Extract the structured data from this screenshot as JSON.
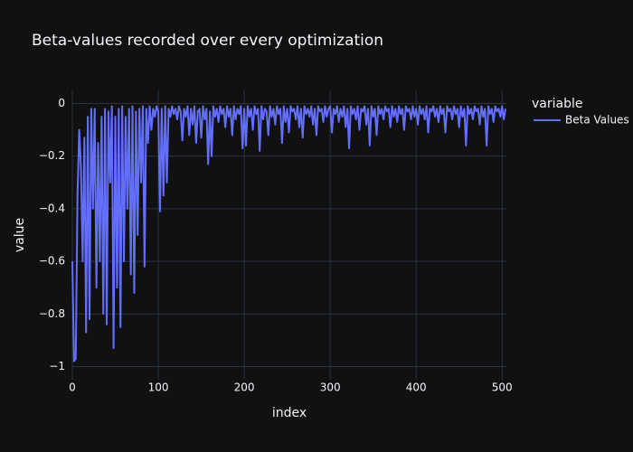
{
  "chart_data": {
    "type": "line",
    "title": "Beta-values recorded over every optimization",
    "x_label": "index",
    "y_label": "value",
    "legend_title": "variable",
    "xlim": [
      0,
      505
    ],
    "ylim": [
      -1.05,
      0.05
    ],
    "xticks": [
      0,
      100,
      200,
      300,
      400,
      500
    ],
    "yticks": [
      {
        "value": -1,
        "label": "−1"
      },
      {
        "value": -0.8,
        "label": "−0.8"
      },
      {
        "value": -0.6,
        "label": "−0.6"
      },
      {
        "value": -0.4,
        "label": "−0.4"
      },
      {
        "value": -0.2,
        "label": "−0.2"
      },
      0
    ],
    "grid": true,
    "x": [
      0,
      2,
      4,
      6,
      8,
      10,
      12,
      14,
      16,
      18,
      20,
      22,
      24,
      26,
      28,
      30,
      32,
      34,
      36,
      38,
      40,
      42,
      44,
      46,
      48,
      50,
      52,
      54,
      56,
      58,
      60,
      62,
      64,
      66,
      68,
      70,
      72,
      74,
      76,
      78,
      80,
      82,
      84,
      86,
      88,
      90,
      92,
      94,
      96,
      98,
      100,
      102,
      104,
      106,
      108,
      110,
      112,
      114,
      116,
      118,
      120,
      122,
      124,
      126,
      128,
      130,
      132,
      134,
      136,
      138,
      140,
      142,
      144,
      146,
      148,
      150,
      152,
      154,
      156,
      158,
      160,
      162,
      164,
      166,
      168,
      170,
      172,
      174,
      176,
      178,
      180,
      182,
      184,
      186,
      188,
      190,
      192,
      194,
      196,
      198,
      200,
      202,
      204,
      206,
      208,
      210,
      212,
      214,
      216,
      218,
      220,
      222,
      224,
      226,
      228,
      230,
      232,
      234,
      236,
      238,
      240,
      242,
      244,
      246,
      248,
      250,
      252,
      254,
      256,
      258,
      260,
      262,
      264,
      266,
      268,
      270,
      272,
      274,
      276,
      278,
      280,
      282,
      284,
      286,
      288,
      290,
      292,
      294,
      296,
      298,
      300,
      302,
      304,
      306,
      308,
      310,
      312,
      314,
      316,
      318,
      320,
      322,
      324,
      326,
      328,
      330,
      332,
      334,
      336,
      338,
      340,
      342,
      344,
      346,
      348,
      350,
      352,
      354,
      356,
      358,
      360,
      362,
      364,
      366,
      368,
      370,
      372,
      374,
      376,
      378,
      380,
      382,
      384,
      386,
      388,
      390,
      392,
      394,
      396,
      398,
      400,
      402,
      404,
      406,
      408,
      410,
      412,
      414,
      416,
      418,
      420,
      422,
      424,
      426,
      428,
      430,
      432,
      434,
      436,
      438,
      440,
      442,
      444,
      446,
      448,
      450,
      452,
      454,
      456,
      458,
      460,
      462,
      464,
      466,
      468,
      470,
      472,
      474,
      476,
      478,
      480,
      482,
      484,
      486,
      488,
      490,
      492,
      494,
      496,
      498,
      500,
      502,
      504
    ],
    "series": [
      {
        "name": "Beta Values",
        "color": "#636efa",
        "values": [
          -0.6,
          -0.98,
          -0.97,
          -0.35,
          -0.1,
          -0.24,
          -0.6,
          -0.13,
          -0.87,
          -0.05,
          -0.82,
          -0.02,
          -0.4,
          -0.02,
          -0.7,
          -0.15,
          -0.6,
          -0.05,
          -0.8,
          -0.02,
          -0.84,
          -0.03,
          -0.3,
          -0.01,
          -0.93,
          -0.05,
          -0.7,
          -0.02,
          -0.85,
          -0.01,
          -0.6,
          -0.05,
          -0.4,
          -0.02,
          -0.65,
          -0.01,
          -0.72,
          -0.03,
          -0.5,
          -0.02,
          -0.3,
          -0.01,
          -0.62,
          -0.02,
          -0.15,
          -0.01,
          -0.1,
          -0.02,
          -0.05,
          -0.01,
          -0.03,
          -0.41,
          -0.02,
          -0.35,
          -0.01,
          -0.3,
          -0.02,
          -0.05,
          -0.01,
          -0.04,
          -0.02,
          -0.06,
          -0.01,
          -0.03,
          -0.14,
          -0.02,
          -0.05,
          -0.01,
          -0.12,
          -0.02,
          -0.08,
          -0.01,
          -0.15,
          -0.03,
          -0.02,
          -0.13,
          -0.01,
          -0.06,
          -0.02,
          -0.23,
          -0.03,
          -0.2,
          -0.01,
          -0.05,
          -0.02,
          -0.07,
          -0.01,
          -0.04,
          -0.02,
          -0.09,
          -0.01,
          -0.05,
          -0.02,
          -0.12,
          -0.01,
          -0.06,
          -0.02,
          -0.04,
          -0.01,
          -0.17,
          -0.02,
          -0.16,
          -0.01,
          -0.05,
          -0.02,
          -0.1,
          -0.01,
          -0.04,
          -0.02,
          -0.18,
          -0.01,
          -0.06,
          -0.02,
          -0.03,
          -0.12,
          -0.01,
          -0.05,
          -0.02,
          -0.08,
          -0.01,
          -0.04,
          -0.02,
          -0.15,
          -0.01,
          -0.07,
          -0.02,
          -0.11,
          -0.01,
          -0.03,
          -0.02,
          -0.06,
          -0.01,
          -0.09,
          -0.02,
          -0.13,
          -0.01,
          -0.04,
          -0.02,
          -0.05,
          -0.01,
          -0.08,
          -0.02,
          -0.12,
          -0.01,
          -0.03,
          -0.02,
          -0.07,
          -0.01,
          -0.05,
          -0.02,
          -0.01,
          -0.11,
          -0.02,
          -0.04,
          -0.01,
          -0.07,
          -0.02,
          -0.05,
          -0.01,
          -0.09,
          -0.02,
          -0.17,
          -0.01,
          -0.04,
          -0.02,
          -0.06,
          -0.01,
          -0.1,
          -0.02,
          -0.03,
          -0.01,
          -0.08,
          -0.02,
          -0.16,
          -0.01,
          -0.05,
          -0.02,
          -0.12,
          -0.01,
          -0.04,
          -0.02,
          -0.06,
          -0.01,
          -0.03,
          -0.02,
          -0.09,
          -0.01,
          -0.05,
          -0.02,
          -0.07,
          -0.01,
          -0.04,
          -0.02,
          -0.1,
          -0.01,
          -0.03,
          -0.02,
          -0.06,
          -0.01,
          -0.05,
          -0.02,
          -0.08,
          -0.01,
          -0.04,
          -0.02,
          -0.06,
          -0.01,
          -0.11,
          -0.02,
          -0.03,
          -0.01,
          -0.05,
          -0.02,
          -0.07,
          -0.01,
          -0.04,
          -0.02,
          -0.11,
          -0.01,
          -0.03,
          -0.02,
          -0.06,
          -0.01,
          -0.04,
          -0.02,
          -0.09,
          -0.01,
          -0.05,
          -0.02,
          -0.16,
          -0.01,
          -0.04,
          -0.02,
          -0.06,
          -0.01,
          -0.03,
          -0.02,
          -0.08,
          -0.01,
          -0.05,
          -0.02,
          -0.16,
          -0.01,
          -0.04,
          -0.02,
          -0.07,
          -0.01,
          -0.03,
          -0.02,
          -0.05,
          -0.01,
          -0.06,
          -0.02
        ]
      }
    ]
  }
}
